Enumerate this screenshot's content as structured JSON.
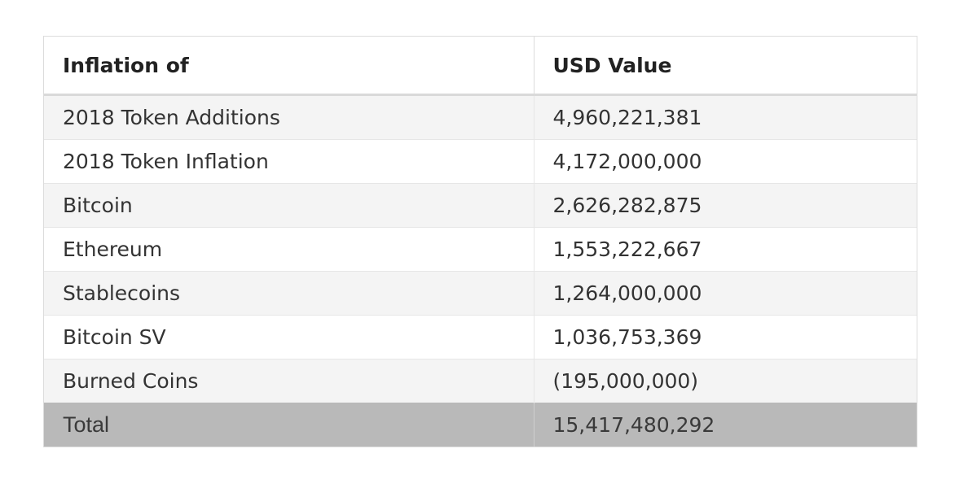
{
  "table": {
    "headers": [
      "Inflation of",
      "USD Value"
    ],
    "rows": [
      {
        "label": "2018 Token Additions",
        "value": "4,960,221,381"
      },
      {
        "label": "2018 Token Inflation",
        "value": "4,172,000,000"
      },
      {
        "label": "Bitcoin",
        "value": "2,626,282,875"
      },
      {
        "label": "Ethereum",
        "value": "1,553,222,667"
      },
      {
        "label": "Stablecoins",
        "value": "1,264,000,000"
      },
      {
        "label": "Bitcoin SV",
        "value": "1,036,753,369"
      },
      {
        "label": "Burned Coins",
        "value": "(195,000,000)"
      }
    ],
    "total": {
      "label": "Total",
      "value": "15,417,480,292"
    }
  }
}
